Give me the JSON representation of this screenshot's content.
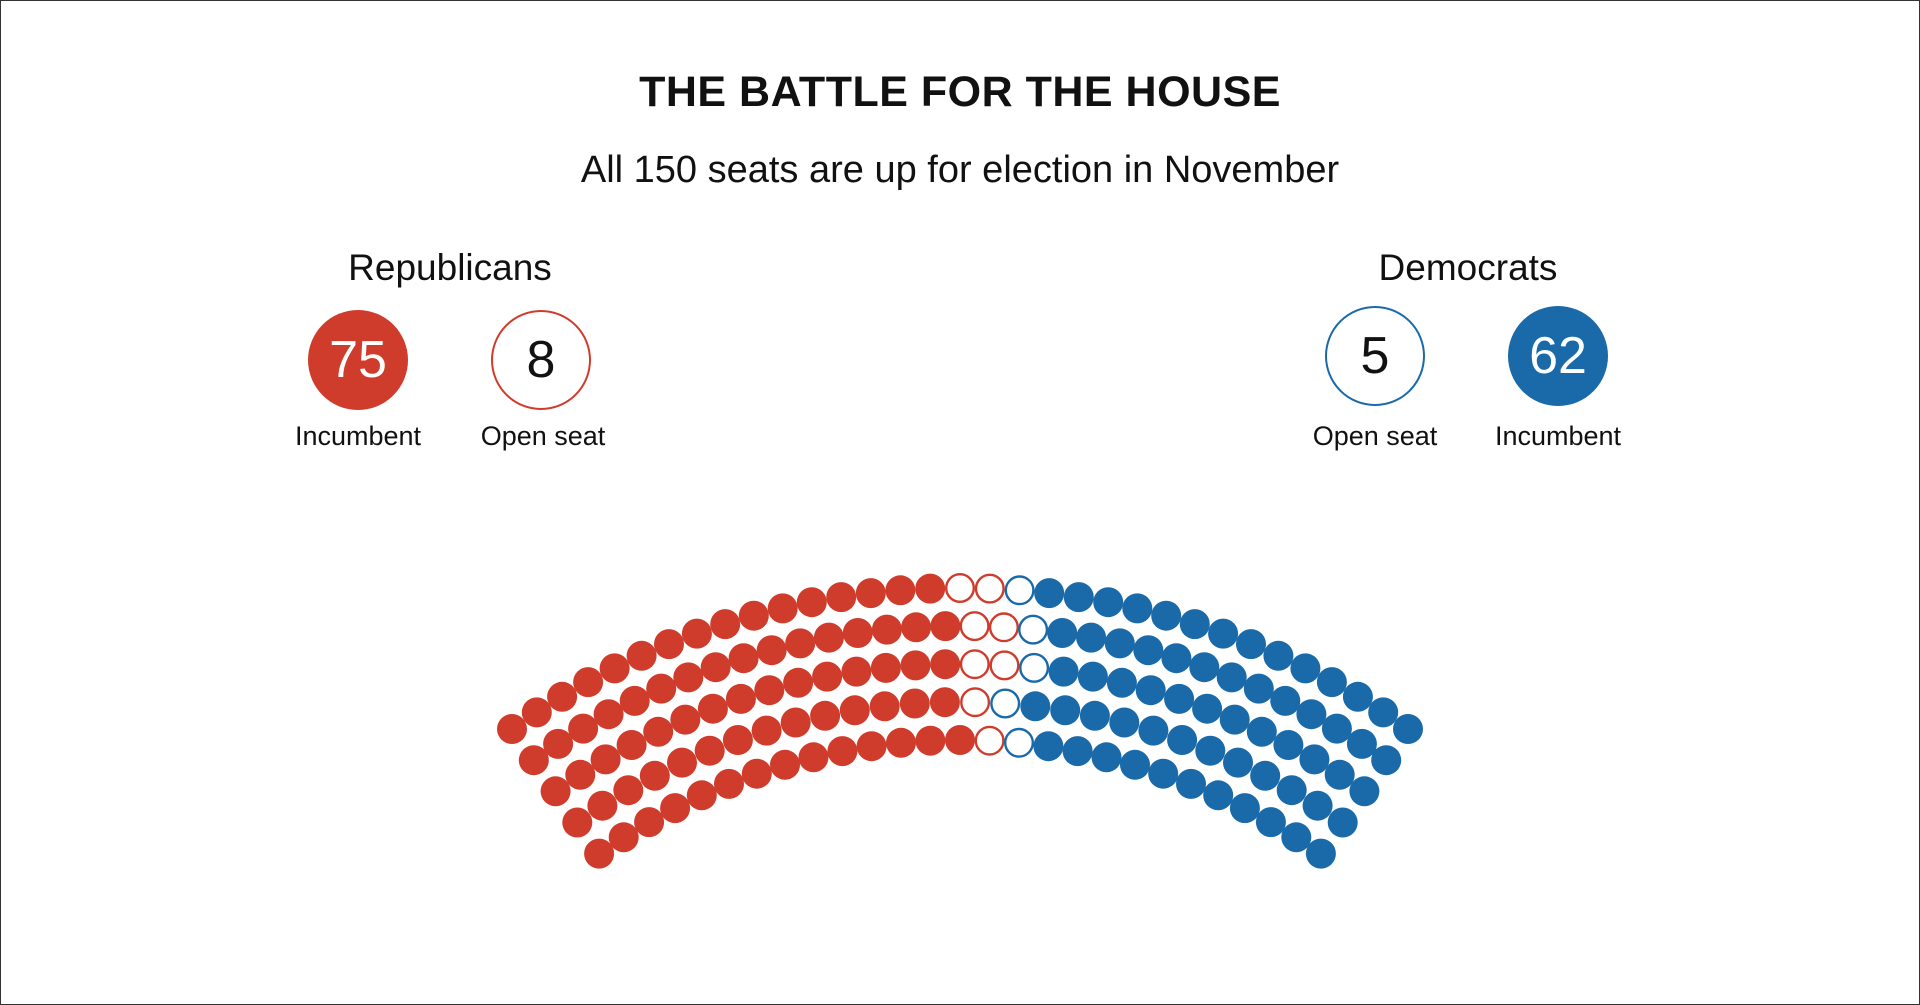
{
  "title": "THE BATTLE FOR THE HOUSE",
  "subtitle": "All 150 seats are up for election in November",
  "colors": {
    "republican": "#D03C2B",
    "democrat": "#1A6AAA",
    "frame": "#333333"
  },
  "legend": {
    "republicans": {
      "label": "Republicans",
      "incumbent": {
        "value": "75",
        "caption": "Incumbent"
      },
      "open": {
        "value": "8",
        "caption": "Open seat"
      }
    },
    "democrats": {
      "label": "Democrats",
      "open": {
        "value": "5",
        "caption": "Open seat"
      },
      "incumbent": {
        "value": "62",
        "caption": "Incumbent"
      }
    }
  },
  "chart_data": {
    "type": "parliament",
    "total_seats": 150,
    "series": [
      {
        "name": "Incumbent",
        "party": "Republicans",
        "value": 75,
        "style": "filled",
        "color": "#D03C2B"
      },
      {
        "name": "Open seat",
        "party": "Republicans",
        "value": 8,
        "style": "open",
        "color": "#D03C2B"
      },
      {
        "name": "Open seat",
        "party": "Democrats",
        "value": 5,
        "style": "open",
        "color": "#1A6AAA"
      },
      {
        "name": "Incumbent",
        "party": "Democrats",
        "value": 62,
        "style": "filled",
        "color": "#1A6AAA"
      }
    ]
  }
}
